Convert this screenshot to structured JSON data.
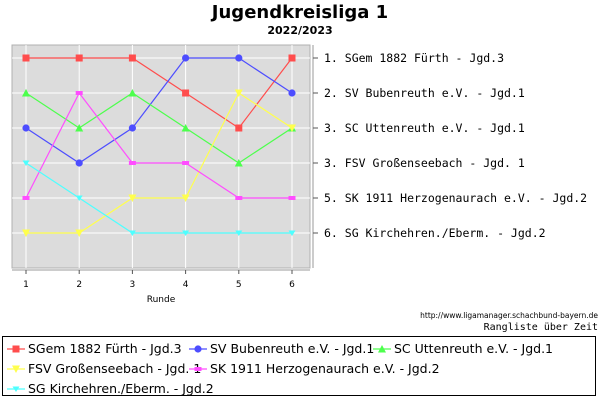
{
  "chart_data": {
    "type": "line",
    "title": "Jugendkreisliga 1",
    "subtitle": "2022/2023",
    "xlabel": "Runde",
    "ylabel": "",
    "x": [
      1,
      2,
      3,
      4,
      5,
      6
    ],
    "x_tick_labels": [
      "1",
      "2",
      "3",
      "4",
      "5",
      "6"
    ],
    "ylim": [
      1,
      6
    ],
    "y_inverted": true,
    "grid": true,
    "background": "#dcdcdc",
    "legend_position": "bottom",
    "ranking_labels": [
      "1.  SGem 1882 Fürth - Jgd.3",
      "2.  SV Bubenreuth e.V. - Jgd.1",
      "3.  SC Uttenreuth e.V. - Jgd.1",
      "3.  FSV Großenseebach - Jgd. 1",
      "5.  SK 1911 Herzogenaurach e.V. - Jgd.2",
      "6.  SG Kirchehren./Eberm. - Jgd.2"
    ],
    "series": [
      {
        "name": "SGem 1882 Fürth - Jgd.3",
        "values": [
          1,
          1,
          1,
          2,
          3,
          1
        ],
        "color": "#ff4d4d",
        "marker": "square"
      },
      {
        "name": "SV Bubenreuth e.V. - Jgd.1",
        "values": [
          3,
          4,
          3,
          1,
          1,
          2
        ],
        "color": "#4d4dff",
        "marker": "circle"
      },
      {
        "name": "SC Uttenreuth e.V. - Jgd.1",
        "values": [
          2,
          3,
          2,
          3,
          4,
          3
        ],
        "color": "#4dff4d",
        "marker": "triangle-up"
      },
      {
        "name": "FSV Großenseebach - Jgd. 1",
        "values": [
          6,
          6,
          5,
          5,
          2,
          3
        ],
        "color": "#ffff4d",
        "marker": "triangle-down"
      },
      {
        "name": "SK 1911 Herzogenaurach e.V. - Jgd.2",
        "values": [
          5,
          2,
          4,
          4,
          5,
          5
        ],
        "color": "#ff4dff",
        "marker": "dash"
      },
      {
        "name": "SG Kirchehren./Eberm. - Jgd.2",
        "values": [
          4,
          5,
          6,
          6,
          6,
          6
        ],
        "color": "#4dffff",
        "marker": "triangle-down-small"
      }
    ]
  },
  "footer": {
    "source_url": "http://www.ligamanager.schachbund-bayern.de",
    "caption": "Rangliste über Zeit"
  }
}
